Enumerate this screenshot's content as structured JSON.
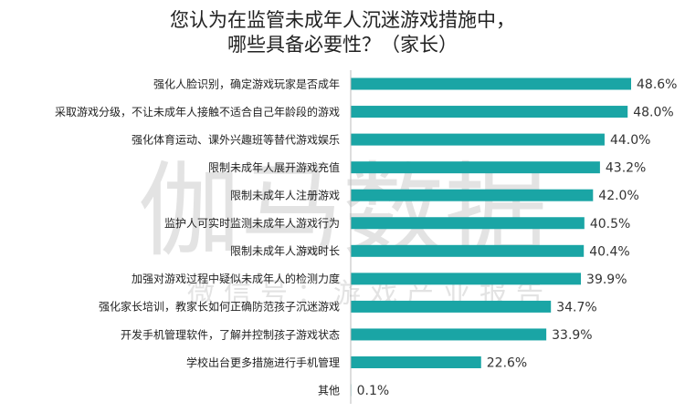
{
  "chart_data": {
    "type": "bar",
    "orientation": "horizontal",
    "title_lines": [
      "您认为在监管未成年人沉迷游戏措施中，",
      "哪些具备必要性？（家长）"
    ],
    "categories": [
      "强化人脸识别，确定游戏玩家是否成年",
      "采取游戏分级，不让未成年人接触不适合自己年龄段的游戏",
      "强化体育运动、课外兴趣班等替代游戏娱乐",
      "限制未成年人展开游戏充值",
      "限制未成年人注册游戏",
      "监护人可实时监测未成年人游戏行为",
      "限制未成年人游戏时长",
      "加强对游戏过程中疑似未成年人的检测力度",
      "强化家长培训，教家长如何正确防范孩子沉迷游戏",
      "开发手机管理软件，了解并控制孩子游戏状态",
      "学校出台更多措施进行手机管理",
      "其他"
    ],
    "values": [
      48.6,
      48.0,
      44.0,
      43.2,
      42.0,
      40.5,
      40.4,
      39.9,
      34.7,
      33.9,
      22.6,
      0.1
    ],
    "value_labels": [
      "48.6%",
      "48.0%",
      "44.0%",
      "43.2%",
      "42.0%",
      "40.5%",
      "40.4%",
      "39.9%",
      "34.7%",
      "33.9%",
      "22.6%",
      "0.1%"
    ],
    "unit": "%",
    "xlim": [
      0,
      55
    ],
    "grid": false,
    "legend": "none",
    "bar_color": "#1aa5a5",
    "axis_color": "#bbbbbb",
    "label_color": "#222222",
    "value_label_color": "#333333"
  },
  "watermark": {
    "main": "伽马数据",
    "sub": "微信号：游戏产业报告",
    "color": "#e3e3e3"
  }
}
